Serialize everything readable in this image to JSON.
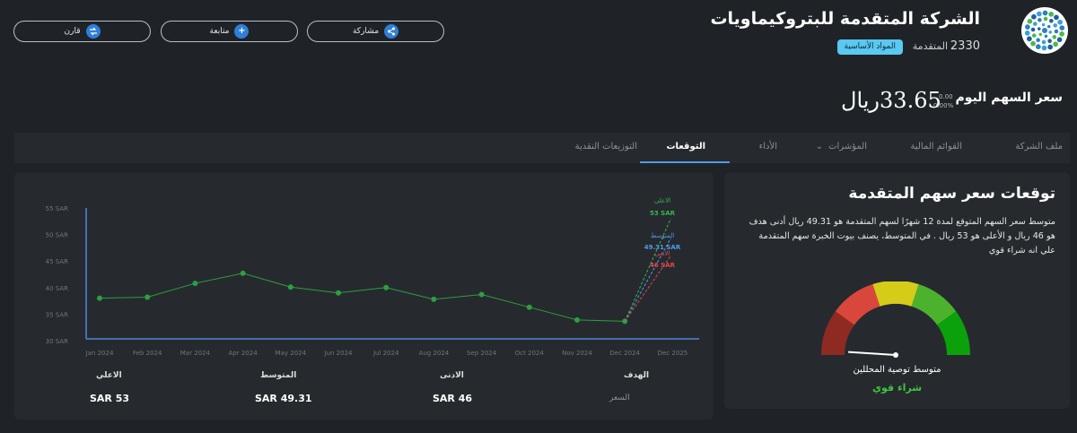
{
  "header": {
    "company_name": "الشركة المتقدمة للبتروكيماويات",
    "symbol_code": "2330",
    "symbol_name": "المتقدمة",
    "sector": "المواد الأساسية"
  },
  "actions": {
    "share": "مشاركة",
    "follow": "متابعة",
    "compare": "قارن"
  },
  "price": {
    "label": "سعر السهم اليوم",
    "value": "33.65ريال",
    "change": "0.00",
    "change_pct": "0.00%"
  },
  "tabs": [
    {
      "label": "ملف الشركة"
    },
    {
      "label": "القوائم المالية"
    },
    {
      "label": "المؤشرات"
    },
    {
      "label": "الأداء"
    },
    {
      "label": "التوقعات"
    },
    {
      "label": "التوزيعات النقدية"
    }
  ],
  "active_tab": 4,
  "chart_data": {
    "type": "line",
    "x": [
      "Jan 2024",
      "Feb 2024",
      "Mar 2024",
      "Apr 2024",
      "May 2024",
      "Jun 2024",
      "Jul 2024",
      "Aug 2024",
      "Sep 2024",
      "Oct 2024",
      "Nov 2024",
      "Dec 2024",
      "Dec 2025"
    ],
    "series": [
      {
        "values": [
          38.0,
          38.2,
          40.8,
          42.7,
          40.1,
          39.0,
          40.0,
          37.8,
          38.7,
          36.3,
          33.9,
          33.65,
          null
        ],
        "color": "#2e9e3e"
      }
    ],
    "forecast": {
      "from": "Dec 2024",
      "to": "Dec 2025",
      "high": {
        "label": "الاعلى",
        "value": 53,
        "text": "53 SAR",
        "color": "#36b64a"
      },
      "avg": {
        "label": "المتوسط",
        "value": 49.31,
        "text": "49.31 SAR",
        "color": "#4f9be8"
      },
      "low": {
        "label": "الادنى",
        "value": 46,
        "text": "46 SAR",
        "color": "#e04a4a"
      }
    },
    "y_ticks": [
      "30 SAR",
      "35 SAR",
      "40 SAR",
      "45 SAR",
      "50 SAR",
      "55 SAR"
    ],
    "ylim": [
      30,
      55
    ],
    "grid": false
  },
  "summary": {
    "target_label": "الهدف",
    "price_label": "السعر",
    "low_label": "الادنى",
    "low_value": "SAR 46",
    "avg_label": "المتوسط",
    "avg_value": "SAR 49.31",
    "high_label": "الاعلي",
    "high_value": "SAR 53"
  },
  "forecast_panel": {
    "title": "توقعات سعر سهم المتقدمة",
    "description": "متوسط سعر السهم المتوقع لمدة 12 شهرًا لسهم المتقدمة هو 49.31 ريال أدنى هدف هو 46 ريال و الأعلى هو 53 ريال . في المتوسط، يصنف بيوت الخبرة سهم المتقدمة علي انه شراء قوي",
    "gauge_label": "متوسط توصية المحللين",
    "verdict": "شراء قوي",
    "gauge_colors": [
      "#8f2a22",
      "#d9463c",
      "#d4cc19",
      "#4cb22e",
      "#0aa10a"
    ],
    "gauge_level": 0.02
  }
}
